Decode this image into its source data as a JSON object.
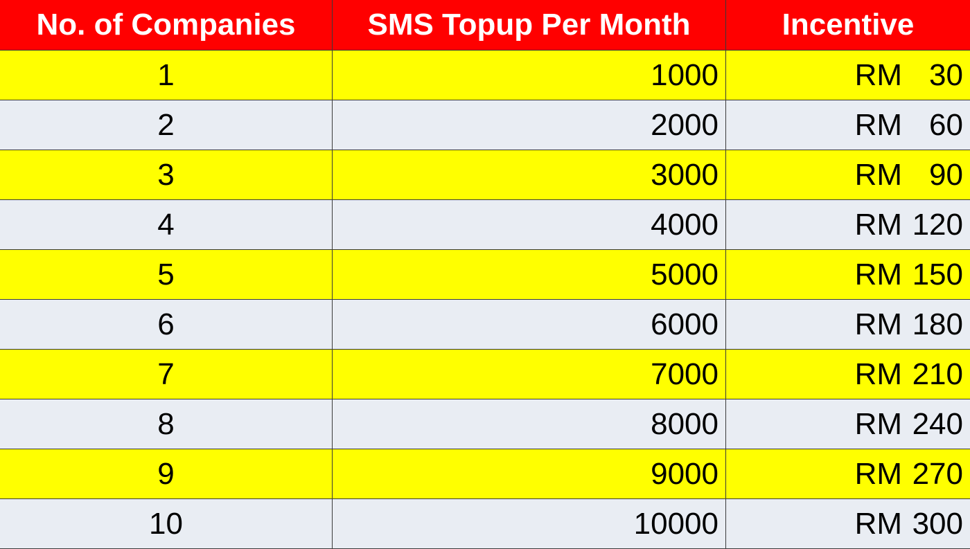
{
  "headers": {
    "companies": "No. of Companies",
    "sms_topup": "SMS Topup Per Month",
    "incentive": "Incentive"
  },
  "colors": {
    "header_bg": "#ff0000",
    "header_text": "#ffffff",
    "row_odd_bg": "#ffff00",
    "row_even_bg": "#e9edf3"
  },
  "rows": [
    {
      "companies": "1",
      "sms_topup": "1000",
      "currency": "RM",
      "amount": "30"
    },
    {
      "companies": "2",
      "sms_topup": "2000",
      "currency": "RM",
      "amount": "60"
    },
    {
      "companies": "3",
      "sms_topup": "3000",
      "currency": "RM",
      "amount": "90"
    },
    {
      "companies": "4",
      "sms_topup": "4000",
      "currency": "RM",
      "amount": "120"
    },
    {
      "companies": "5",
      "sms_topup": "5000",
      "currency": "RM",
      "amount": "150"
    },
    {
      "companies": "6",
      "sms_topup": "6000",
      "currency": "RM",
      "amount": "180"
    },
    {
      "companies": "7",
      "sms_topup": "7000",
      "currency": "RM",
      "amount": "210"
    },
    {
      "companies": "8",
      "sms_topup": "8000",
      "currency": "RM",
      "amount": "240"
    },
    {
      "companies": "9",
      "sms_topup": "9000",
      "currency": "RM",
      "amount": "270"
    },
    {
      "companies": "10",
      "sms_topup": "10000",
      "currency": "RM",
      "amount": "300"
    }
  ]
}
